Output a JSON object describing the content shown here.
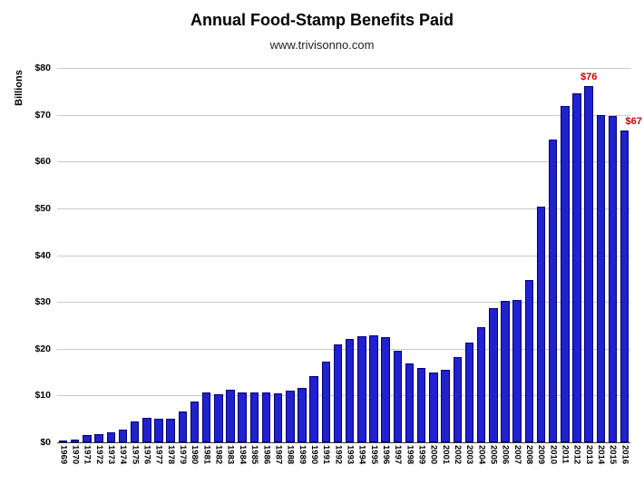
{
  "page": {
    "title": "Annual Food-Stamp Benefits Paid",
    "subtitle": "www.trivisonno.com"
  },
  "chart_data": {
    "type": "bar",
    "title": "Annual Food-Stamp Benefits Paid",
    "subtitle": "www.trivisonno.com",
    "xlabel": "",
    "ylabel": "Billions",
    "ylim": [
      0,
      80
    ],
    "ytick_step": 10,
    "ytick_prefix": "$",
    "grid": true,
    "legend": false,
    "categories": [
      1969,
      1970,
      1971,
      1972,
      1973,
      1974,
      1975,
      1976,
      1977,
      1978,
      1979,
      1980,
      1981,
      1982,
      1983,
      1984,
      1985,
      1986,
      1987,
      1988,
      1989,
      1990,
      1991,
      1992,
      1993,
      1994,
      1995,
      1996,
      1997,
      1998,
      1999,
      2000,
      2001,
      2002,
      2003,
      2004,
      2005,
      2006,
      2007,
      2008,
      2009,
      2010,
      2011,
      2012,
      2013,
      2014,
      2015,
      2016
    ],
    "values": [
      0.25,
      0.55,
      1.5,
      1.8,
      2.1,
      2.7,
      4.4,
      5.3,
      5.1,
      5.1,
      6.5,
      8.7,
      10.6,
      10.2,
      11.2,
      10.7,
      10.7,
      10.6,
      10.5,
      11.1,
      11.7,
      14.2,
      17.3,
      20.9,
      22.0,
      22.7,
      22.8,
      22.4,
      19.5,
      16.9,
      15.8,
      15.0,
      15.5,
      18.3,
      21.4,
      24.6,
      28.6,
      30.2,
      30.4,
      34.6,
      50.4,
      64.7,
      71.8,
      74.6,
      76.1,
      70.0,
      69.7,
      66.6
    ],
    "annotations": [
      {
        "category": "2013",
        "text": "$76",
        "dx": 0
      },
      {
        "category": "2016",
        "text": "$67",
        "dx": 10
      }
    ],
    "colors": {
      "bar_fill": "#2121cd",
      "bar_border": "#00007a",
      "annotation": "#cc0000",
      "gridline": "#c9c9c9",
      "axis": "#333333"
    }
  }
}
